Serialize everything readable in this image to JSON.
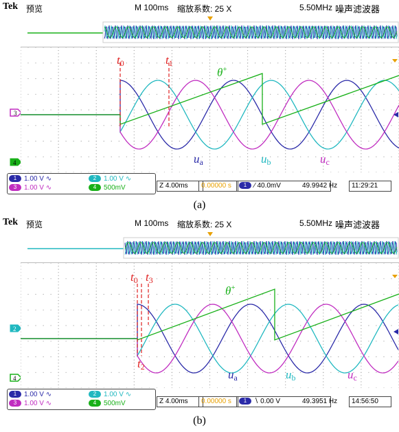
{
  "colors": {
    "ch1": "#2a2aa8",
    "ch2": "#20b8c0",
    "ch3": "#c02cc0",
    "ch4": "#18b018",
    "tmark": "#e02020",
    "orange": "#e8a000"
  },
  "panels": [
    {
      "tek": "Tek",
      "mode": "预览",
      "timebase": "M 100ms",
      "zoom_factor": "缩放系数: 25 X",
      "sample_rate": "5.50MHz",
      "acq_mode": "噪声滤波器",
      "ch_marker_mid": "3",
      "ch_marker_low": "4",
      "ch_settings": [
        {
          "num": "1",
          "value": "1.00 V",
          "coupling": "∿"
        },
        {
          "num": "2",
          "value": "1.00 V",
          "coupling": "∿"
        },
        {
          "num": "3",
          "value": "1.00 V",
          "coupling": "∿"
        },
        {
          "num": "4",
          "value": "500mV",
          "coupling": ""
        }
      ],
      "zoom_scale": "Z 4.00ms",
      "zoom_pos": "0.00000 s",
      "trig_ch": "1",
      "trig_level": "∕ 40.0mV",
      "freq": "49.9942 Hz",
      "time": "11:29:21",
      "labels": {
        "t0": "t",
        "t0_sub": "0",
        "t1": "t",
        "t1_sub": "1",
        "theta": "θ",
        "theta_sup": "+",
        "ua": "u",
        "ua_sub": "a",
        "ub": "u",
        "ub_sub": "b",
        "uc": "u",
        "uc_sub": "c"
      },
      "caption": "(a)"
    },
    {
      "tek": "Tek",
      "mode": "预览",
      "timebase": "M 100ms",
      "zoom_factor": "缩放系数: 25 X",
      "sample_rate": "5.50MHz",
      "acq_mode": "噪声滤波器",
      "ch_marker_mid": "2",
      "ch_marker_low": "4",
      "ch_settings": [
        {
          "num": "1",
          "value": "1.00 V",
          "coupling": "∿"
        },
        {
          "num": "2",
          "value": "1.00 V",
          "coupling": "∿"
        },
        {
          "num": "3",
          "value": "1.00 V",
          "coupling": "∿"
        },
        {
          "num": "4",
          "value": "500mV",
          "coupling": ""
        }
      ],
      "zoom_scale": "Z 4.00ms",
      "zoom_pos": "0.00000 s",
      "trig_ch": "1",
      "trig_level": "∖ 0.00 V",
      "freq": "49.3951 Hz",
      "time": "14:56:50",
      "labels": {
        "t0": "t",
        "t0_sub": "0",
        "t3": "t",
        "t3_sub": "3",
        "t2": "t",
        "t2_sub": "2",
        "theta": "θ",
        "theta_sup": "+",
        "ua": "u",
        "ua_sub": "a",
        "ub": "u",
        "ub_sub": "b",
        "uc": "u",
        "uc_sub": "c"
      },
      "caption": "(b)"
    }
  ]
}
